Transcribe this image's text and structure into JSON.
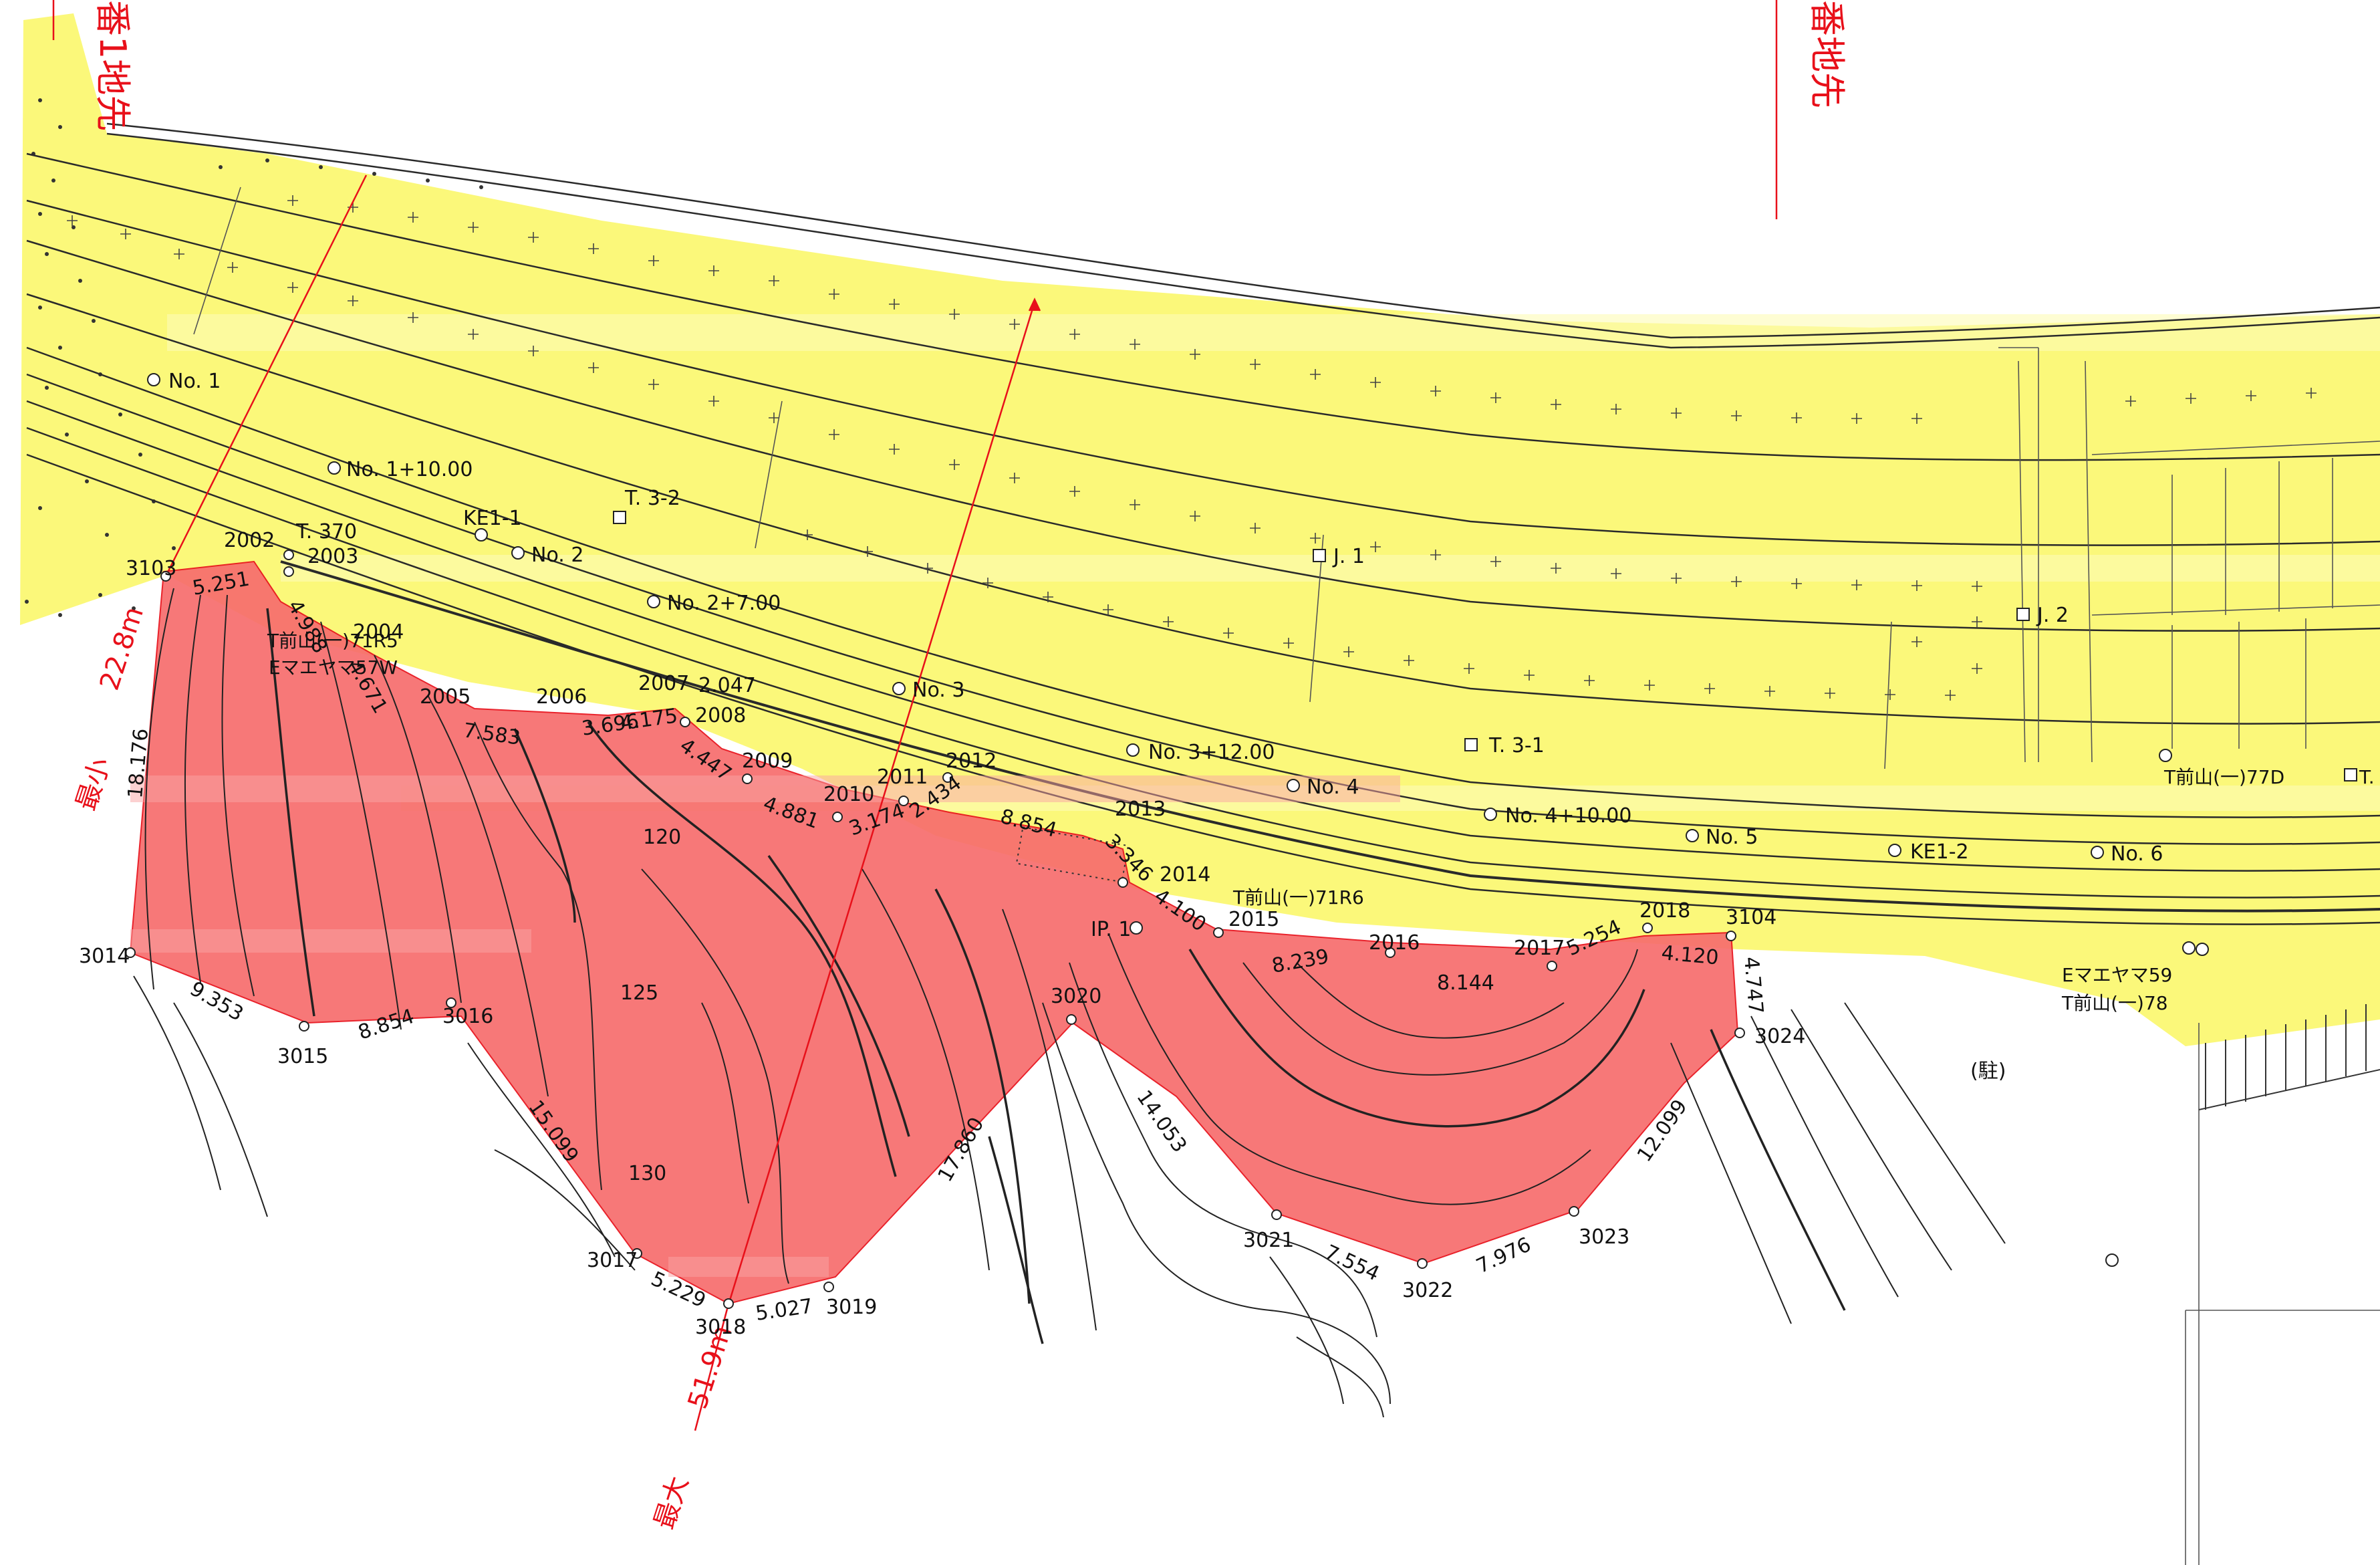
{
  "colors": {
    "yellow_zone": "#fbf87a",
    "red_zone": "#f76d6d",
    "red_line": "#e8101a",
    "linework": "#2a2a2a"
  },
  "top_texts": {
    "left_vertical": "番1地先",
    "right_vertical": "番地先"
  },
  "measures": {
    "min_label": "最小",
    "min_value": "22.8m",
    "max_label": "最大",
    "max_value": "51.9m"
  },
  "stations": [
    {
      "id": "no1",
      "label": "No. 1"
    },
    {
      "id": "no1p10",
      "label": "No. 1+10.00"
    },
    {
      "id": "no2",
      "label": "No. 2"
    },
    {
      "id": "no2p7",
      "label": "No. 2+7.00"
    },
    {
      "id": "no3",
      "label": "No. 3"
    },
    {
      "id": "no3p12",
      "label": "No. 3+12.00"
    },
    {
      "id": "no4",
      "label": "No. 4"
    },
    {
      "id": "no4p10",
      "label": "No. 4+10.00"
    },
    {
      "id": "no5",
      "label": "No. 5"
    },
    {
      "id": "ke12",
      "label": "KE1-2"
    },
    {
      "id": "no6",
      "label": "No. 6"
    }
  ],
  "markers": {
    "ke11": "KE1-1",
    "t32": "T. 3-2",
    "t370": "T. 370",
    "j1": "J. 1",
    "j2": "J. 2",
    "t31": "T. 3-1",
    "ip1": "IP. 1",
    "t77d": "T前山(一)77D",
    "t71r6": "T前山(一)71R6",
    "t71r5": "T前山(一)71R5",
    "e57w": "Eマエヤマ57W",
    "e59": "Eマエヤマ59",
    "t78": "T前山(一)78",
    "parking": "(駐)",
    "t_edge": "T."
  },
  "contours": {
    "c120": "120",
    "c125": "125",
    "c130": "130"
  },
  "points": {
    "p3103": "3103",
    "p2002": "2002",
    "p2003": "2003",
    "p2004": "2004",
    "p2005": "2005",
    "p2006": "2006",
    "p2007": "2007",
    "p2008": "2008",
    "p2009": "2009",
    "p2010": "2010",
    "p2011": "2011",
    "p2012": "2012",
    "p2013": "2013",
    "p2014": "2014",
    "p2015": "2015",
    "p2016": "2016",
    "p2017": "2017",
    "p2018": "2018",
    "p3104": "3104",
    "p3024": "3024",
    "p3023": "3023",
    "p3022": "3022",
    "p3021": "3021",
    "p3020": "3020",
    "p3019": "3019",
    "p3018": "3018",
    "p3017": "3017",
    "p3016": "3016",
    "p3015": "3015",
    "p3014": "3014"
  },
  "distances": {
    "d5251": "5.251",
    "d4988": "4.988",
    "d4671": "4.671",
    "d7583": "7.583",
    "d3696": "3.696",
    "d4175": "4.175",
    "d2047": "2.047",
    "d4447": "4.447",
    "d4881": "4.881",
    "d3174": "3.174",
    "d2434": "2.434",
    "d8854a": "8.854",
    "d3346": "3.346",
    "d4100": "4.100",
    "d8239": "8.239",
    "d8144": "8.144",
    "d5254": "5.254",
    "d4120": "4.120",
    "d4747": "4.747",
    "d12099": "12.099",
    "d7976": "7.976",
    "d7554": "7.554",
    "d14053": "14.053",
    "d17860": "17.860",
    "d5027": "5.027",
    "d5229": "5.229",
    "d15099": "15.099",
    "d8854b": "8.854",
    "d9353": "9.353",
    "d18176": "18.176"
  }
}
